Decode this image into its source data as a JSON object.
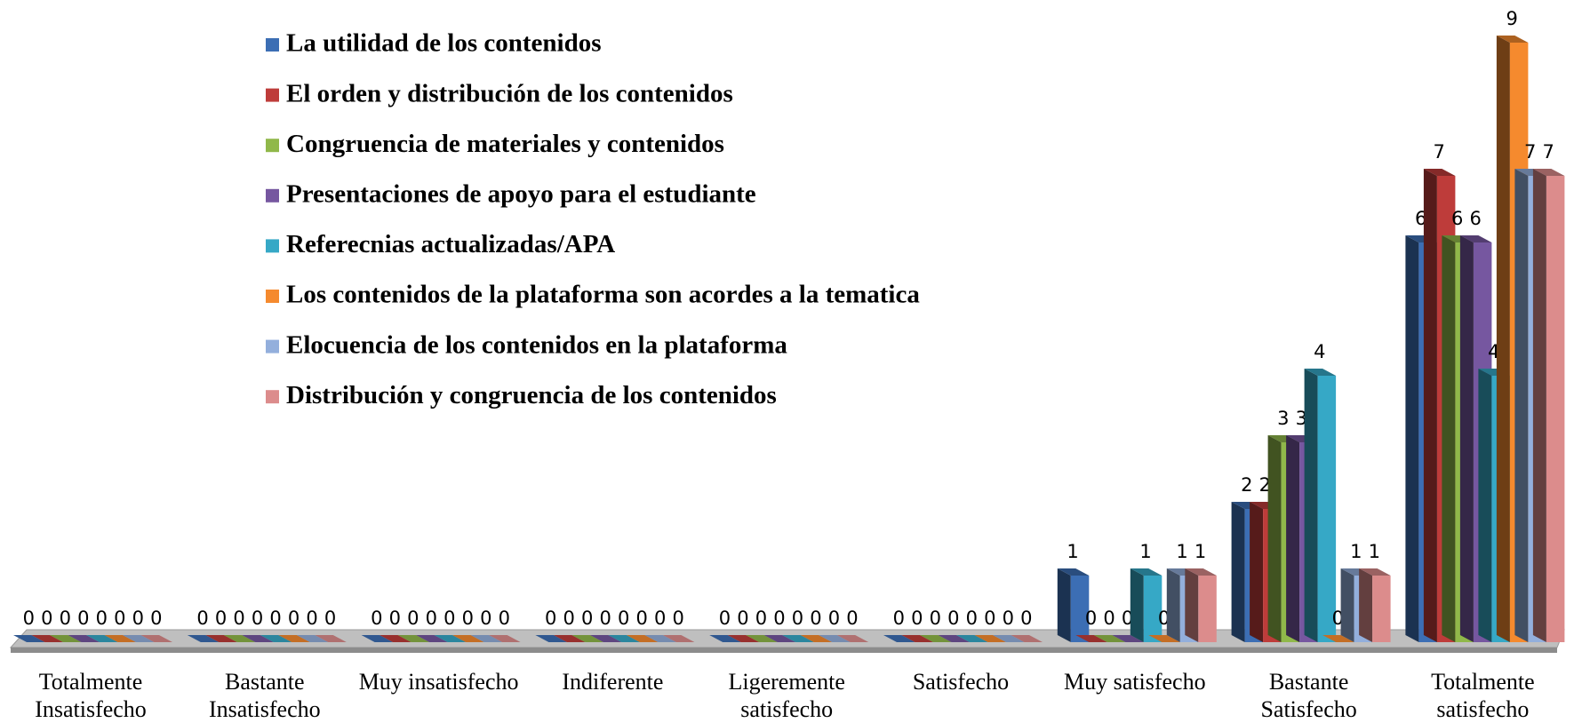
{
  "chart_data": {
    "type": "bar",
    "categories": [
      "Totalmente Insatisfecho",
      "Bastante Insatisfecho",
      "Muy insatisfecho",
      "Indiferente",
      "Ligeremente satisfecho",
      "Satisfecho",
      "Muy satisfecho",
      "Bastante Satisfecho",
      "Totalmente satisfecho"
    ],
    "series": [
      {
        "name": "La utilidad de los contenidos",
        "color": "#3c6eb4",
        "values": [
          0,
          0,
          0,
          0,
          0,
          0,
          1,
          2,
          6
        ]
      },
      {
        "name": "El orden y distribución de los contenidos",
        "color": "#be3c3a",
        "values": [
          0,
          0,
          0,
          0,
          0,
          0,
          0,
          2,
          7
        ]
      },
      {
        "name": "Congruencia de materiales y contenidos",
        "color": "#90b84a",
        "values": [
          0,
          0,
          0,
          0,
          0,
          0,
          0,
          3,
          6
        ]
      },
      {
        "name": "Presentaciones de apoyo para el estudiante",
        "color": "#7657a0",
        "values": [
          0,
          0,
          0,
          0,
          0,
          0,
          0,
          3,
          6
        ]
      },
      {
        "name": "Referecnias actualizadas/APA",
        "color": "#36a8c6",
        "values": [
          0,
          0,
          0,
          0,
          0,
          0,
          1,
          4,
          4
        ]
      },
      {
        "name": "Los contenidos de la plataforma son acordes a la tematica",
        "color": "#f58a2e",
        "values": [
          0,
          0,
          0,
          0,
          0,
          0,
          0,
          0,
          9
        ]
      },
      {
        "name": "Elocuencia de los contenidos en la plataforma",
        "color": "#93afdc",
        "values": [
          0,
          0,
          0,
          0,
          0,
          0,
          1,
          1,
          7
        ]
      },
      {
        "name": "Distribución y congruencia de los contenidos",
        "color": "#dc8c8c",
        "values": [
          0,
          0,
          0,
          0,
          0,
          0,
          1,
          1,
          7
        ]
      }
    ]
  }
}
